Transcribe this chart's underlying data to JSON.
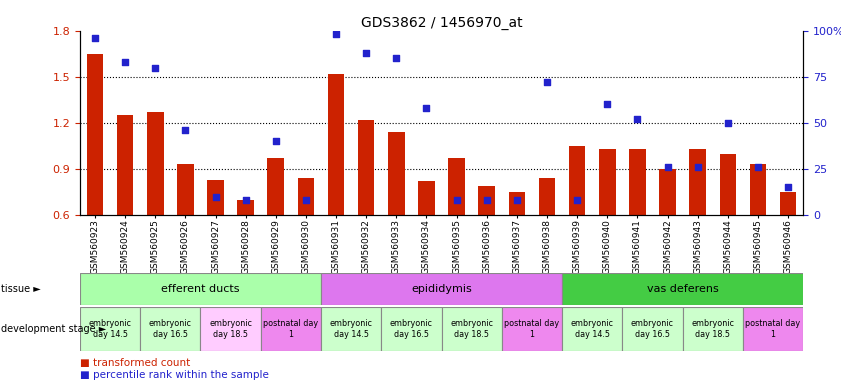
{
  "title": "GDS3862 / 1456970_at",
  "samples": [
    "GSM560923",
    "GSM560924",
    "GSM560925",
    "GSM560926",
    "GSM560927",
    "GSM560928",
    "GSM560929",
    "GSM560930",
    "GSM560931",
    "GSM560932",
    "GSM560933",
    "GSM560934",
    "GSM560935",
    "GSM560936",
    "GSM560937",
    "GSM560938",
    "GSM560939",
    "GSM560940",
    "GSM560941",
    "GSM560942",
    "GSM560943",
    "GSM560944",
    "GSM560945",
    "GSM560946"
  ],
  "bar_values": [
    1.65,
    1.25,
    1.27,
    0.93,
    0.83,
    0.7,
    0.97,
    0.84,
    1.52,
    1.22,
    1.14,
    0.82,
    0.97,
    0.79,
    0.75,
    0.84,
    1.05,
    1.03,
    1.03,
    0.9,
    1.03,
    1.0,
    0.93,
    0.75
  ],
  "percentile_values": [
    96,
    83,
    80,
    46,
    10,
    8,
    40,
    8,
    98,
    88,
    85,
    58,
    8,
    8,
    8,
    72,
    8,
    60,
    52,
    26,
    26,
    50,
    26,
    15
  ],
  "ylim_left": [
    0.6,
    1.8
  ],
  "ylim_right": [
    0,
    100
  ],
  "yticks_left": [
    0.6,
    0.9,
    1.2,
    1.5,
    1.8
  ],
  "yticks_right": [
    0,
    25,
    50,
    75,
    100
  ],
  "bar_color": "#cc2200",
  "dot_color": "#2222cc",
  "tissue_groups": [
    {
      "label": "efferent ducts",
      "start": 0,
      "end": 7,
      "color": "#aaffaa"
    },
    {
      "label": "epididymis",
      "start": 8,
      "end": 15,
      "color": "#dd77ee"
    },
    {
      "label": "vas deferens",
      "start": 16,
      "end": 23,
      "color": "#44cc44"
    }
  ],
  "dev_stage_groups": [
    {
      "label": "embryonic\nday 14.5",
      "start": 0,
      "end": 1,
      "color": "#ccffcc"
    },
    {
      "label": "embryonic\nday 16.5",
      "start": 2,
      "end": 3,
      "color": "#ccffcc"
    },
    {
      "label": "embryonic\nday 18.5",
      "start": 4,
      "end": 5,
      "color": "#ffccff"
    },
    {
      "label": "postnatal day\n1",
      "start": 6,
      "end": 7,
      "color": "#ee88ee"
    },
    {
      "label": "embryonic\nday 14.5",
      "start": 8,
      "end": 9,
      "color": "#ccffcc"
    },
    {
      "label": "embryonic\nday 16.5",
      "start": 10,
      "end": 11,
      "color": "#ccffcc"
    },
    {
      "label": "embryonic\nday 18.5",
      "start": 12,
      "end": 13,
      "color": "#ccffcc"
    },
    {
      "label": "postnatal day\n1",
      "start": 14,
      "end": 15,
      "color": "#ee88ee"
    },
    {
      "label": "embryonic\nday 14.5",
      "start": 16,
      "end": 17,
      "color": "#ccffcc"
    },
    {
      "label": "embryonic\nday 16.5",
      "start": 18,
      "end": 19,
      "color": "#ccffcc"
    },
    {
      "label": "embryonic\nday 18.5",
      "start": 20,
      "end": 21,
      "color": "#ccffcc"
    },
    {
      "label": "postnatal day\n1",
      "start": 22,
      "end": 23,
      "color": "#ee88ee"
    }
  ],
  "legend_bar_label": "transformed count",
  "legend_dot_label": "percentile rank within the sample"
}
